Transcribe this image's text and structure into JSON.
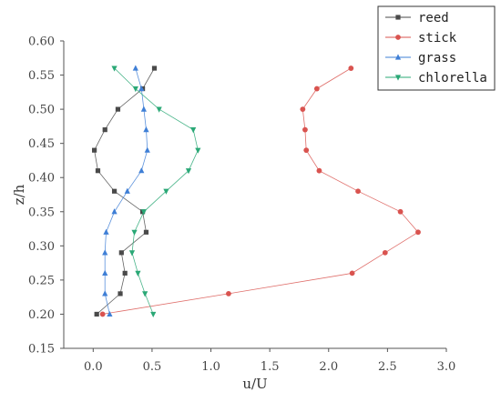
{
  "chart_data": {
    "type": "line",
    "xlabel": "u/U",
    "ylabel": "z/h",
    "xlim": [
      -0.25,
      3.0
    ],
    "ylim": [
      0.15,
      0.6
    ],
    "x_ticks": [
      "0.0",
      "0.5",
      "1.0",
      "1.5",
      "2.0",
      "2.5",
      "3.0"
    ],
    "y_ticks": [
      "0.15",
      "0.20",
      "0.25",
      "0.30",
      "0.35",
      "0.40",
      "0.45",
      "0.50",
      "0.55",
      "0.60"
    ],
    "grid": false,
    "legend_position": "top-right",
    "series": [
      {
        "name": "reed",
        "color": "#4a4a4a",
        "marker": "square",
        "points": [
          [
            0.52,
            0.56
          ],
          [
            0.42,
            0.53
          ],
          [
            0.21,
            0.5
          ],
          [
            0.1,
            0.47
          ],
          [
            0.01,
            0.44
          ],
          [
            0.04,
            0.41
          ],
          [
            0.18,
            0.38
          ],
          [
            0.42,
            0.35
          ],
          [
            0.45,
            0.32
          ],
          [
            0.24,
            0.29
          ],
          [
            0.27,
            0.26
          ],
          [
            0.23,
            0.23
          ],
          [
            0.03,
            0.2
          ]
        ]
      },
      {
        "name": "stick",
        "color": "#d9534f",
        "marker": "circle",
        "points": [
          [
            2.19,
            0.56
          ],
          [
            1.9,
            0.53
          ],
          [
            1.78,
            0.5
          ],
          [
            1.8,
            0.47
          ],
          [
            1.81,
            0.44
          ],
          [
            1.92,
            0.41
          ],
          [
            2.25,
            0.38
          ],
          [
            2.61,
            0.35
          ],
          [
            2.76,
            0.32
          ],
          [
            2.48,
            0.29
          ],
          [
            2.2,
            0.26
          ],
          [
            1.15,
            0.23
          ],
          [
            0.08,
            0.2
          ]
        ]
      },
      {
        "name": "grass",
        "color": "#3f7fd6",
        "marker": "triangle-up",
        "points": [
          [
            0.36,
            0.56
          ],
          [
            0.41,
            0.53
          ],
          [
            0.43,
            0.5
          ],
          [
            0.45,
            0.47
          ],
          [
            0.46,
            0.44
          ],
          [
            0.41,
            0.41
          ],
          [
            0.29,
            0.38
          ],
          [
            0.18,
            0.35
          ],
          [
            0.11,
            0.32
          ],
          [
            0.1,
            0.29
          ],
          [
            0.1,
            0.26
          ],
          [
            0.1,
            0.23
          ],
          [
            0.14,
            0.2
          ]
        ]
      },
      {
        "name": "chlorella",
        "color": "#2aa876",
        "marker": "triangle-down",
        "points": [
          [
            0.18,
            0.56
          ],
          [
            0.36,
            0.53
          ],
          [
            0.56,
            0.5
          ],
          [
            0.85,
            0.47
          ],
          [
            0.89,
            0.44
          ],
          [
            0.81,
            0.41
          ],
          [
            0.62,
            0.38
          ],
          [
            0.43,
            0.35
          ],
          [
            0.35,
            0.32
          ],
          [
            0.33,
            0.29
          ],
          [
            0.38,
            0.26
          ],
          [
            0.44,
            0.23
          ],
          [
            0.51,
            0.2
          ]
        ]
      }
    ]
  }
}
